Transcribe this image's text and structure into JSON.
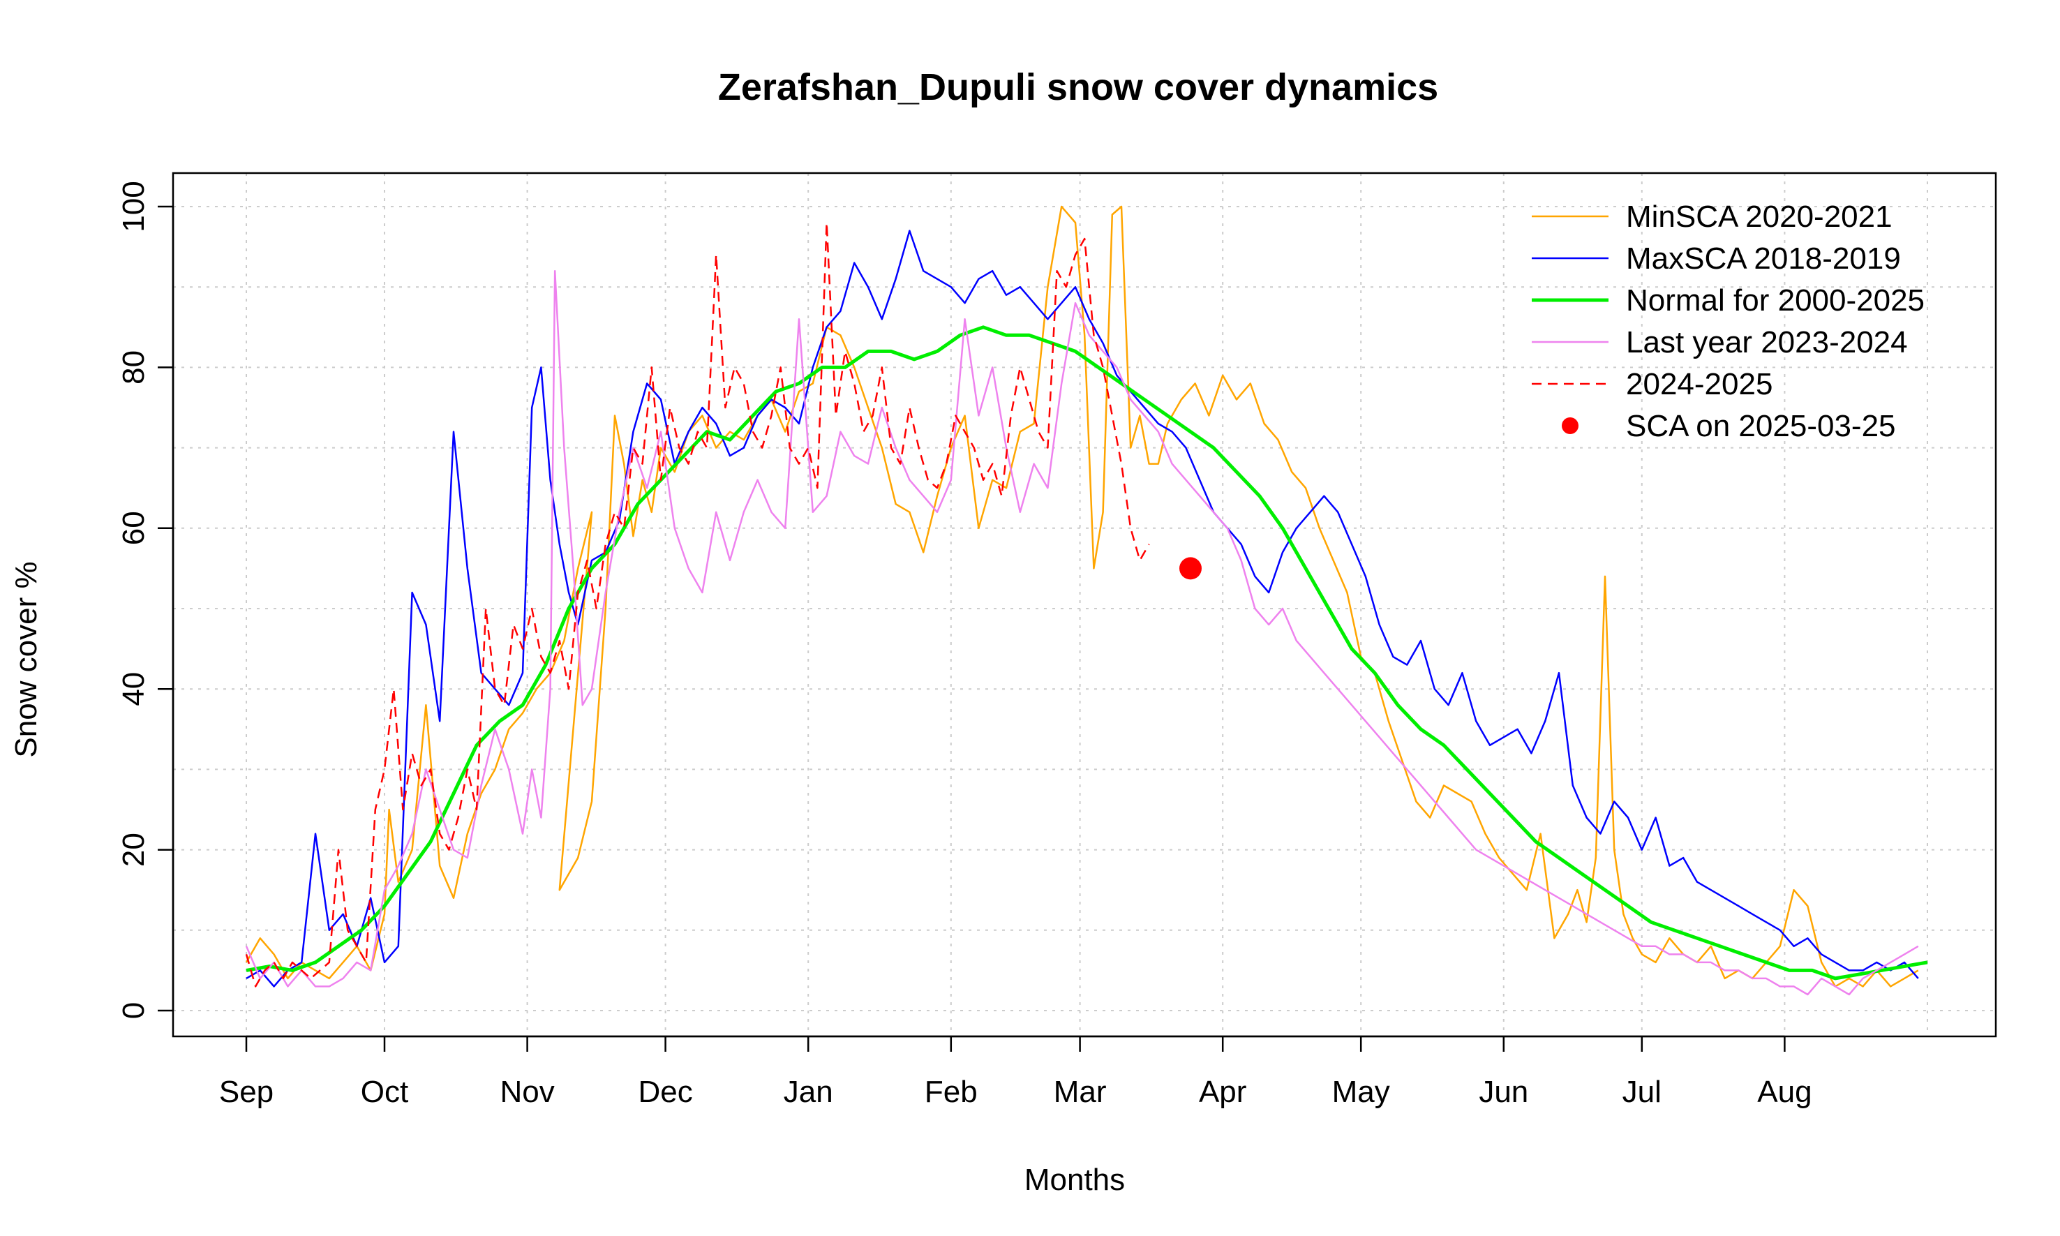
{
  "chart_data": {
    "type": "line",
    "title": "Zerafshan_Dupuli snow cover dynamics",
    "xlabel": "Months",
    "ylabel": "Snow cover %",
    "xlim": [
      0,
      365
    ],
    "ylim": [
      0,
      100
    ],
    "x_tick_labels": [
      {
        "day": 0,
        "label": "Sep"
      },
      {
        "day": 30,
        "label": "Oct"
      },
      {
        "day": 61,
        "label": "Nov"
      },
      {
        "day": 91,
        "label": "Dec"
      },
      {
        "day": 122,
        "label": "Jan"
      },
      {
        "day": 153,
        "label": "Feb"
      },
      {
        "day": 181,
        "label": "Mar"
      },
      {
        "day": 212,
        "label": "Apr"
      },
      {
        "day": 242,
        "label": "May"
      },
      {
        "day": 273,
        "label": "Jun"
      },
      {
        "day": 303,
        "label": "Jul"
      },
      {
        "day": 334,
        "label": "Aug"
      }
    ],
    "y_ticks": [
      0,
      20,
      40,
      60,
      80,
      100
    ],
    "grid": true,
    "legend_position": "top-right",
    "series": [
      {
        "name": "MinSCA 2020-2021",
        "color": "#FFA500",
        "style": "solid",
        "width": 2.5,
        "x": [
          0,
          3,
          6,
          9,
          12,
          15,
          18,
          21,
          24,
          27,
          30,
          31,
          33,
          36,
          39,
          42,
          45,
          48,
          51,
          54,
          57,
          60,
          63,
          66,
          69,
          72,
          75,
          68,
          72,
          75,
          78,
          80,
          82,
          84,
          86,
          88,
          90,
          93,
          96,
          99,
          102,
          105,
          108,
          111,
          114,
          117,
          120,
          123,
          126,
          129,
          132,
          135,
          138,
          141,
          144,
          147,
          150,
          153,
          156,
          159,
          162,
          165,
          168,
          171,
          174,
          177,
          180,
          182,
          184,
          186,
          188,
          190,
          192,
          194,
          196,
          198,
          200,
          203,
          206,
          209,
          212,
          215,
          218,
          221,
          224,
          227,
          230,
          233,
          236,
          239,
          242,
          245,
          248,
          251,
          254,
          257,
          260,
          263,
          266,
          269,
          272,
          275,
          278,
          281,
          284,
          287,
          289,
          291,
          293,
          295,
          297,
          299,
          301,
          303,
          306,
          309,
          312,
          315,
          318,
          321,
          324,
          327,
          330,
          333,
          336,
          339,
          342,
          345,
          348,
          351,
          354,
          357,
          360,
          363
        ],
        "y": [
          6,
          9,
          7,
          4,
          6,
          5,
          4,
          6,
          8,
          5,
          12,
          25,
          16,
          20,
          38,
          18,
          14,
          22,
          27,
          30,
          35,
          37,
          40,
          42,
          46,
          55,
          62,
          15,
          19,
          26,
          50,
          74,
          68,
          59,
          66,
          62,
          70,
          67,
          72,
          74,
          70,
          72,
          71,
          74,
          76,
          72,
          77,
          78,
          85,
          84,
          80,
          75,
          70,
          63,
          62,
          57,
          64,
          70,
          74,
          60,
          66,
          65,
          72,
          73,
          90,
          100,
          98,
          84,
          55,
          62,
          99,
          100,
          70,
          74,
          68,
          68,
          73,
          76,
          78,
          74,
          79,
          76,
          78,
          73,
          71,
          67,
          65,
          60,
          56,
          52,
          44,
          42,
          36,
          31,
          26,
          24,
          28,
          27,
          26,
          22,
          19,
          17,
          15,
          22,
          9,
          12,
          15,
          11,
          19,
          54,
          20,
          12,
          9,
          7,
          6,
          9,
          7,
          6,
          8,
          4,
          5,
          4,
          6,
          8,
          15,
          13,
          6,
          3,
          4,
          3,
          5,
          3,
          4,
          5
        ]
      },
      {
        "name": "MaxSCA 2018-2019",
        "color": "#0000FF",
        "style": "solid",
        "width": 2.5,
        "x": [
          0,
          3,
          6,
          9,
          12,
          15,
          18,
          21,
          24,
          27,
          30,
          33,
          36,
          39,
          42,
          45,
          48,
          51,
          54,
          57,
          60,
          62,
          64,
          66,
          68,
          70,
          72,
          75,
          78,
          81,
          84,
          87,
          90,
          93,
          96,
          99,
          102,
          105,
          108,
          111,
          114,
          117,
          120,
          123,
          126,
          129,
          132,
          135,
          138,
          141,
          144,
          147,
          150,
          153,
          156,
          159,
          162,
          165,
          168,
          171,
          174,
          177,
          180,
          183,
          186,
          189,
          192,
          195,
          198,
          201,
          204,
          207,
          210,
          213,
          216,
          219,
          222,
          225,
          228,
          231,
          234,
          237,
          240,
          243,
          246,
          249,
          252,
          255,
          258,
          261,
          264,
          267,
          270,
          273,
          276,
          279,
          282,
          285,
          288,
          291,
          294,
          297,
          300,
          303,
          306,
          309,
          312,
          315,
          318,
          321,
          324,
          327,
          330,
          333,
          336,
          339,
          342,
          345,
          348,
          351,
          354,
          357,
          360,
          363
        ],
        "y": [
          4,
          5,
          3,
          5,
          6,
          22,
          10,
          12,
          8,
          14,
          6,
          8,
          52,
          48,
          36,
          72,
          55,
          42,
          40,
          38,
          42,
          75,
          80,
          66,
          58,
          52,
          48,
          56,
          57,
          61,
          72,
          78,
          76,
          68,
          72,
          75,
          73,
          69,
          70,
          74,
          76,
          75,
          73,
          80,
          85,
          87,
          93,
          90,
          86,
          91,
          97,
          92,
          91,
          90,
          88,
          91,
          92,
          89,
          90,
          88,
          86,
          88,
          90,
          86,
          83,
          79,
          77,
          75,
          73,
          72,
          70,
          66,
          62,
          60,
          58,
          54,
          52,
          57,
          60,
          62,
          64,
          62,
          58,
          54,
          48,
          44,
          43,
          46,
          40,
          38,
          42,
          36,
          33,
          34,
          35,
          32,
          36,
          42,
          28,
          24,
          22,
          26,
          24,
          20,
          24,
          18,
          19,
          16,
          15,
          14,
          13,
          12,
          11,
          10,
          8,
          9,
          7,
          6,
          5,
          5,
          6,
          5,
          6,
          4
        ]
      },
      {
        "name": "Normal for 2000-2025",
        "color": "#00EE00",
        "style": "solid",
        "width": 5,
        "x": [
          0,
          5,
          10,
          15,
          20,
          25,
          30,
          35,
          40,
          45,
          50,
          55,
          60,
          65,
          70,
          75,
          80,
          85,
          90,
          95,
          100,
          105,
          110,
          115,
          120,
          125,
          130,
          135,
          140,
          145,
          150,
          155,
          160,
          165,
          170,
          175,
          180,
          185,
          190,
          195,
          200,
          205,
          210,
          215,
          220,
          225,
          230,
          235,
          240,
          245,
          250,
          255,
          260,
          265,
          270,
          275,
          280,
          285,
          290,
          295,
          300,
          305,
          310,
          315,
          320,
          325,
          330,
          335,
          340,
          345,
          350,
          355,
          360,
          365
        ],
        "y": [
          5,
          5.5,
          5,
          6,
          8,
          10,
          13,
          17,
          21,
          27,
          33,
          36,
          38,
          43,
          50,
          55,
          58,
          63,
          66,
          69,
          72,
          71,
          74,
          77,
          78,
          80,
          80,
          82,
          82,
          81,
          82,
          84,
          85,
          84,
          84,
          83,
          82,
          80,
          78,
          76,
          74,
          72,
          70,
          67,
          64,
          60,
          55,
          50,
          45,
          42,
          38,
          35,
          33,
          30,
          27,
          24,
          21,
          19,
          17,
          15,
          13,
          11,
          10,
          9,
          8,
          7,
          6,
          5,
          5,
          4,
          4.5,
          5,
          5.5,
          6
        ]
      },
      {
        "name": "Last year 2023-2024",
        "color": "#EE82EE",
        "style": "solid",
        "width": 2.5,
        "x": [
          0,
          3,
          6,
          9,
          12,
          15,
          18,
          21,
          24,
          27,
          30,
          33,
          36,
          39,
          42,
          45,
          48,
          51,
          54,
          57,
          60,
          62,
          64,
          66,
          67,
          69,
          71,
          73,
          75,
          78,
          81,
          84,
          87,
          90,
          93,
          96,
          99,
          102,
          105,
          108,
          111,
          114,
          117,
          120,
          123,
          126,
          129,
          132,
          135,
          138,
          141,
          144,
          147,
          150,
          153,
          156,
          159,
          162,
          165,
          168,
          171,
          174,
          177,
          180,
          183,
          186,
          189,
          192,
          195,
          198,
          201,
          204,
          207,
          210,
          213,
          216,
          219,
          222,
          225,
          228,
          231,
          234,
          237,
          240,
          243,
          246,
          249,
          252,
          255,
          258,
          261,
          264,
          267,
          270,
          273,
          276,
          279,
          282,
          285,
          288,
          291,
          294,
          297,
          300,
          303,
          306,
          309,
          312,
          315,
          318,
          321,
          324,
          327,
          330,
          333,
          336,
          339,
          342,
          345,
          348,
          351,
          354,
          357,
          360,
          363
        ],
        "y": [
          8,
          4,
          6,
          3,
          5,
          3,
          3,
          4,
          6,
          5,
          15,
          18,
          22,
          30,
          25,
          20,
          19,
          28,
          35,
          30,
          22,
          30,
          24,
          40,
          92,
          70,
          55,
          38,
          40,
          52,
          62,
          70,
          65,
          72,
          60,
          55,
          52,
          62,
          56,
          62,
          66,
          62,
          60,
          86,
          62,
          64,
          72,
          69,
          68,
          75,
          70,
          66,
          64,
          62,
          66,
          86,
          74,
          80,
          70,
          62,
          68,
          65,
          78,
          88,
          84,
          82,
          80,
          76,
          74,
          72,
          68,
          66,
          64,
          62,
          60,
          56,
          50,
          48,
          50,
          46,
          44,
          42,
          40,
          38,
          36,
          34,
          32,
          30,
          28,
          26,
          24,
          22,
          20,
          19,
          18,
          17,
          16,
          15,
          14,
          13,
          12,
          11,
          10,
          9,
          8,
          8,
          7,
          7,
          6,
          6,
          5,
          5,
          4,
          4,
          3,
          3,
          2,
          4,
          3,
          2,
          4,
          5,
          6,
          7,
          8
        ]
      },
      {
        "name": "2024-2025",
        "color": "#FF0000",
        "style": "dashed",
        "width": 2.5,
        "x": [
          0,
          2,
          4,
          6,
          8,
          10,
          12,
          14,
          16,
          18,
          20,
          22,
          24,
          26,
          28,
          30,
          32,
          34,
          36,
          38,
          40,
          42,
          44,
          46,
          48,
          50,
          52,
          54,
          56,
          58,
          60,
          62,
          64,
          66,
          68,
          70,
          72,
          74,
          76,
          78,
          80,
          82,
          84,
          86,
          88,
          90,
          92,
          94,
          96,
          98,
          100,
          102,
          104,
          106,
          108,
          110,
          112,
          114,
          116,
          118,
          120,
          122,
          124,
          126,
          128,
          130,
          132,
          134,
          136,
          138,
          140,
          142,
          144,
          146,
          148,
          150,
          152,
          154,
          156,
          158,
          160,
          162,
          164,
          166,
          168,
          170,
          172,
          174,
          176,
          178,
          180,
          182,
          184,
          186,
          188,
          190,
          192,
          194,
          196
        ],
        "y": [
          7,
          3,
          5,
          6,
          4,
          6,
          5,
          4,
          5,
          6,
          20,
          10,
          8,
          6,
          25,
          30,
          40,
          25,
          32,
          28,
          30,
          22,
          20,
          24,
          30,
          25,
          50,
          40,
          38,
          48,
          45,
          50,
          44,
          42,
          46,
          40,
          52,
          56,
          50,
          58,
          62,
          60,
          70,
          68,
          80,
          66,
          75,
          70,
          68,
          72,
          70,
          94,
          75,
          80,
          78,
          72,
          70,
          74,
          80,
          70,
          68,
          70,
          65,
          98,
          74,
          82,
          78,
          72,
          74,
          80,
          70,
          68,
          75,
          70,
          66,
          65,
          68,
          74,
          72,
          70,
          66,
          68,
          64,
          74,
          80,
          76,
          72,
          70,
          92,
          90,
          94,
          96,
          84,
          80,
          74,
          68,
          60,
          56,
          58
        ]
      }
    ],
    "points": [
      {
        "name": "SCA on 2025-03-25",
        "color": "#FF0000",
        "x": 205,
        "y": 55
      }
    ]
  }
}
